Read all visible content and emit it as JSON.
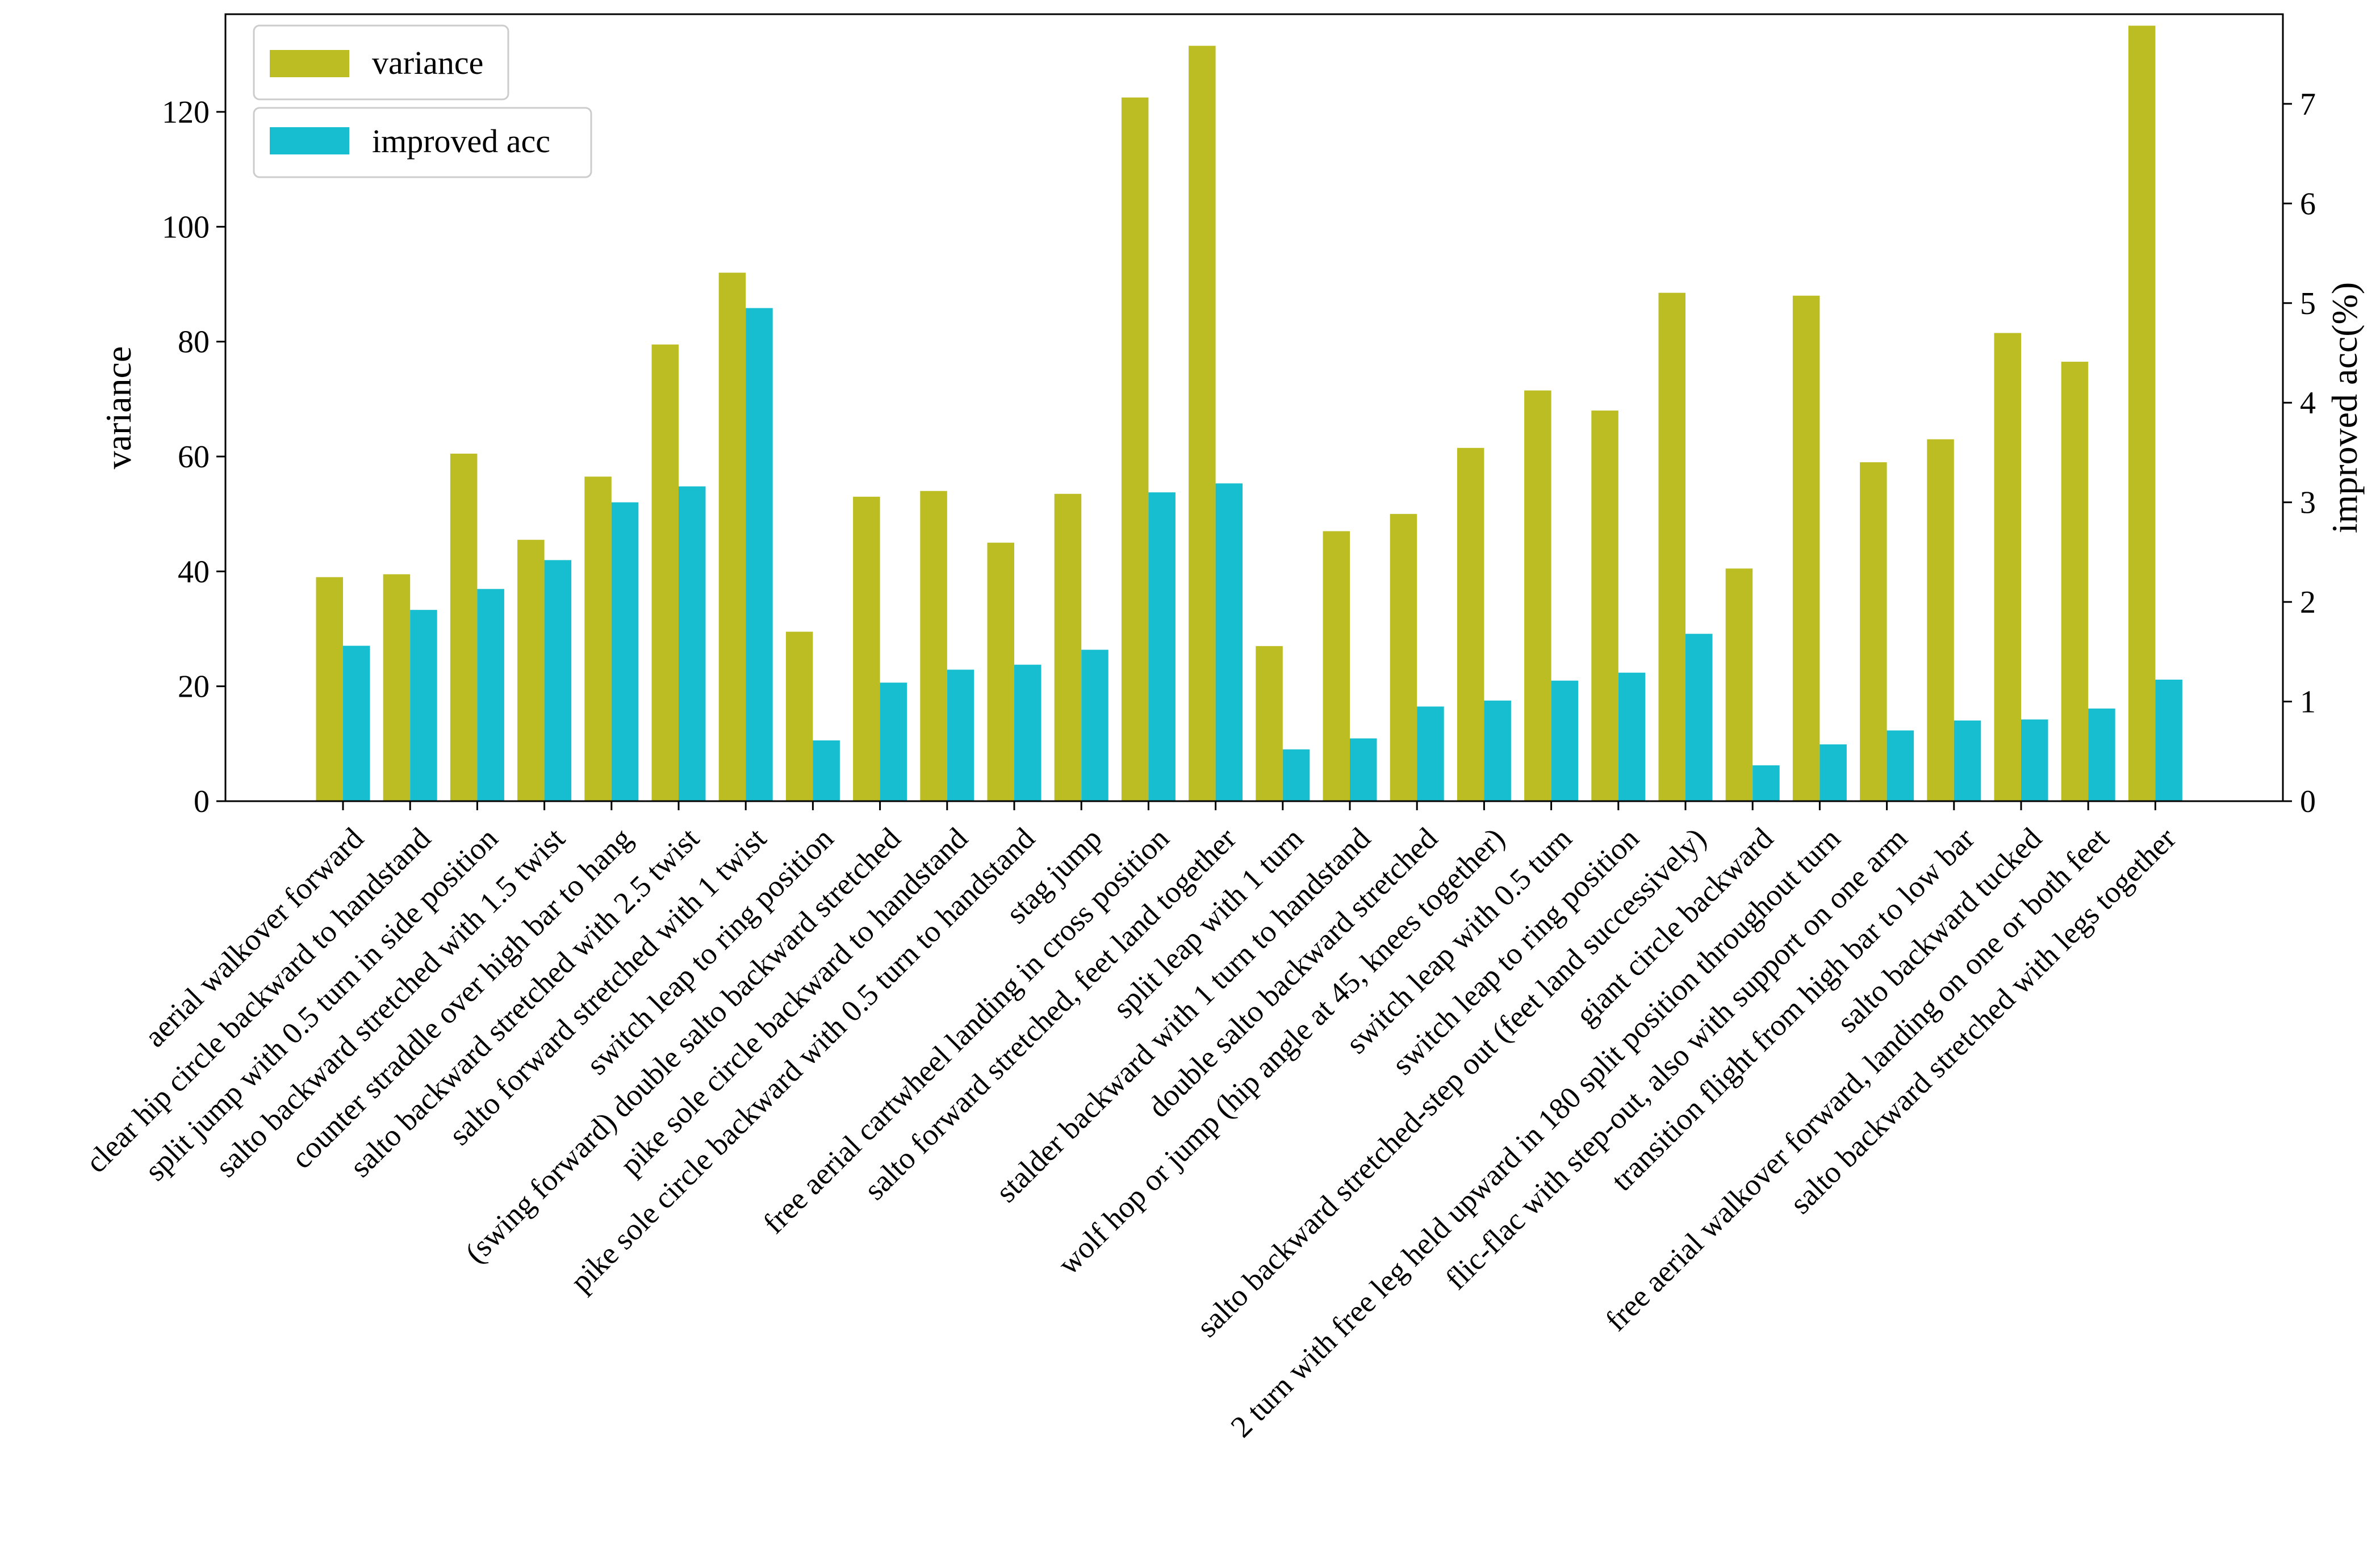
{
  "chart_data": {
    "type": "bar",
    "ylabel": "variance",
    "y2label": "improved acc(%)",
    "ylim": [
      0,
      137
    ],
    "y2lim": [
      0,
      7.9
    ],
    "yticks": [
      0,
      20,
      40,
      60,
      80,
      100,
      120
    ],
    "y2ticks": [
      0,
      1,
      2,
      3,
      4,
      5,
      6,
      7
    ],
    "grid": false,
    "legend": [
      {
        "label": "variance",
        "color": "#bcbd22",
        "position": "top-left"
      },
      {
        "label": "improved acc",
        "color": "#17becf",
        "position": "top-left"
      }
    ],
    "categories": [
      "aerial walkover forward",
      "clear hip circle backward to handstand",
      "split jump with 0.5 turn in side position",
      "salto backward stretched with 1.5 twist",
      "counter straddle over high bar to hang",
      "salto backward stretched with 2.5 twist",
      "salto forward stretched with 1 twist",
      "switch leap to ring position",
      "(swing forward) double salto backward stretched",
      "pike sole circle backward to handstand",
      "pike sole circle backward with 0.5 turn to handstand",
      "stag jump",
      "free aerial cartwheel landing in cross position",
      "salto forward stretched, feet land together",
      "split leap with 1 turn",
      "stalder backward with 1 turn to handstand",
      "double salto backward stretched",
      "wolf hop or jump (hip angle at 45, knees together)",
      "switch leap with 0.5 turn",
      "switch leap to ring position",
      "salto backward stretched-step out (feet land successively)",
      "giant circle backward",
      "2 turn with free leg held upward in 180 split position throughout turn",
      "flic-flac with step-out, also with support on one arm",
      "transition flight from high bar to low bar",
      "salto backward tucked",
      "free aerial walkover forward, landing on one or both feet",
      "salto backward stretched with legs together"
    ],
    "series": [
      {
        "name": "variance",
        "axis": "left",
        "color": "#bcbd22",
        "values": [
          39,
          39.5,
          60.5,
          45.5,
          56.5,
          79.5,
          92,
          29.5,
          53,
          54,
          45,
          53.5,
          122.5,
          131.5,
          27,
          47,
          50,
          61.5,
          71.5,
          68,
          88.5,
          40.5,
          88,
          59,
          63,
          81.5,
          76.5,
          135
        ]
      },
      {
        "name": "improved acc",
        "axis": "right",
        "color": "#17becf",
        "values": [
          1.56,
          1.92,
          2.13,
          2.42,
          3.0,
          3.16,
          4.95,
          0.61,
          1.19,
          1.32,
          1.37,
          1.52,
          3.1,
          3.19,
          0.52,
          0.63,
          0.95,
          1.01,
          1.21,
          1.29,
          1.68,
          0.36,
          0.57,
          0.71,
          0.81,
          0.82,
          0.93,
          1.22
        ]
      }
    ]
  }
}
